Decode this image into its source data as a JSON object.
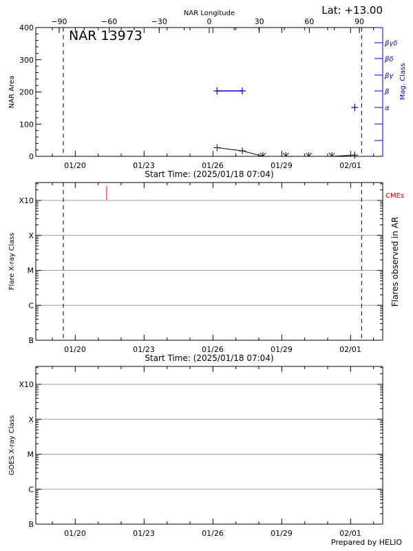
{
  "header": {
    "top_axis_title": "NAR Longitude",
    "lat_label": "Lat: +13.00",
    "region_label": "NAR 13973"
  },
  "footer": {
    "credit": "Prepared by HELIO"
  },
  "colors": {
    "axis": "#000000",
    "grid": "#999999",
    "mag": "#0000cc",
    "cme": "#dd0000"
  },
  "chart_data": [
    {
      "id": "nar-area",
      "type": "line",
      "title": "NAR 13973",
      "xlabel": "Start Time: (2025/01/18 07:04)",
      "ylabel": "NAR Area",
      "ylabel_right": "Mag. Class",
      "top_axis_label": "NAR Longitude",
      "top_ticks": [
        "-90",
        "-60",
        "-30",
        "0",
        "30",
        "60",
        "90"
      ],
      "x_ticks": [
        "01/20",
        "01/23",
        "01/26",
        "01/29",
        "02/01"
      ],
      "y_ticks": [
        "0",
        "100",
        "200",
        "300",
        "400"
      ],
      "ylim": [
        0,
        400
      ],
      "right_ticks": [
        "α",
        "β",
        "βγ",
        "βδ",
        "βγδ"
      ],
      "limb_lines_days": [
        1.2,
        14.2
      ],
      "area_series": {
        "x_days": [
          7.9,
          9.0,
          9.9,
          10.9,
          11.9,
          12.9,
          13.9
        ],
        "values": [
          27,
          17,
          0,
          0,
          0,
          0,
          4
        ]
      },
      "mag_class_series": {
        "x_days": [
          7.9,
          9.0,
          13.9
        ],
        "classes": [
          "β",
          "β",
          "α"
        ]
      }
    },
    {
      "id": "flares",
      "type": "scatter",
      "xlabel": "Start Time: (2025/01/18 07:04)",
      "ylabel": "Flare X-ray Class",
      "ylabel_right": "Flares observed in AR",
      "legend_right": "CMEs",
      "x_ticks": [
        "01/20",
        "01/23",
        "01/26",
        "01/29",
        "02/01"
      ],
      "y_ticks": [
        "B",
        "C",
        "M",
        "X",
        "X10"
      ],
      "limb_lines_days": [
        1.2,
        14.2
      ],
      "cme_markers_days": [
        4.3
      ],
      "flares": []
    },
    {
      "id": "goes",
      "type": "line",
      "xlabel": "",
      "ylabel": "GOES X-ray Class",
      "x_ticks": [
        "01/20",
        "01/23",
        "01/26",
        "01/29",
        "02/01"
      ],
      "y_ticks": [
        "B",
        "C",
        "M",
        "X",
        "X10"
      ],
      "series": []
    }
  ]
}
